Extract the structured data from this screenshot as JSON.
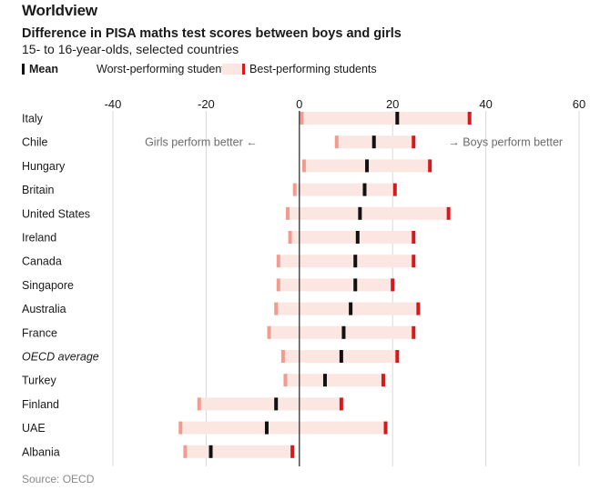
{
  "header": {
    "kicker": "Worldview",
    "title": "Difference in PISA maths test scores between boys and girls",
    "subtitle": "15- to 16-year-olds, selected countries"
  },
  "legend": {
    "mean": "Mean",
    "worst": "Worst-performing students",
    "best": "Best-performing students"
  },
  "footer": {
    "source": "Source: OECD"
  },
  "colors": {
    "mean": "#111111",
    "worst": "#f29c8f",
    "best": "#d7191c",
    "band": "#fbe6e1",
    "grid": "#d9d9d9",
    "zero": "#222222",
    "annotation": "#6b6b6b"
  },
  "chart_data": {
    "type": "range-dot",
    "xlim": [
      -40,
      60
    ],
    "xticks": [
      -40,
      -20,
      0,
      20,
      40,
      60
    ],
    "annotations": {
      "left": "Girls perform better ←",
      "right": "→ Boys perform better"
    },
    "rows": [
      {
        "country": "Italy",
        "worst": 0.5,
        "mean": 21,
        "best": 36.5,
        "italic": false
      },
      {
        "country": "Chile",
        "worst": 8,
        "mean": 16,
        "best": 24.5,
        "italic": false
      },
      {
        "country": "Hungary",
        "worst": 1,
        "mean": 14.5,
        "best": 28,
        "italic": false
      },
      {
        "country": "Britain",
        "worst": -1,
        "mean": 14,
        "best": 20.5,
        "italic": false
      },
      {
        "country": "United States",
        "worst": -2.5,
        "mean": 13,
        "best": 32,
        "italic": false
      },
      {
        "country": "Ireland",
        "worst": -2,
        "mean": 12.5,
        "best": 24.5,
        "italic": false
      },
      {
        "country": "Canada",
        "worst": -4.5,
        "mean": 12,
        "best": 24.5,
        "italic": false
      },
      {
        "country": "Singapore",
        "worst": -4.5,
        "mean": 12,
        "best": 20,
        "italic": false
      },
      {
        "country": "Australia",
        "worst": -5,
        "mean": 11,
        "best": 25.5,
        "italic": false
      },
      {
        "country": "France",
        "worst": -6.5,
        "mean": 9.5,
        "best": 24.5,
        "italic": false
      },
      {
        "country": "OECD average",
        "worst": -3.5,
        "mean": 9,
        "best": 21,
        "italic": true
      },
      {
        "country": "Turkey",
        "worst": -3,
        "mean": 5.5,
        "best": 18,
        "italic": false
      },
      {
        "country": "Finland",
        "worst": -21.5,
        "mean": -5,
        "best": 9,
        "italic": false
      },
      {
        "country": "UAE",
        "worst": -25.5,
        "mean": -7,
        "best": 18.5,
        "italic": false
      },
      {
        "country": "Albania",
        "worst": -24.5,
        "mean": -19,
        "best": -1.5,
        "italic": false
      }
    ]
  }
}
